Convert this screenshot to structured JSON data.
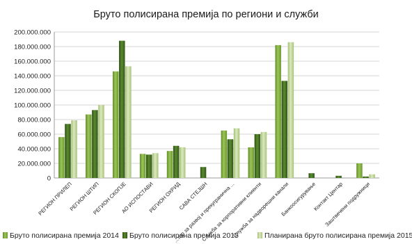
{
  "chart_data": {
    "type": "bar",
    "title": "Бруто полисирана премија по региони и служби",
    "xlabel": "",
    "ylabel": "",
    "ylim": [
      0,
      200000000
    ],
    "yticks": [
      0,
      20000000,
      40000000,
      60000000,
      80000000,
      100000000,
      120000000,
      140000000,
      160000000,
      180000000,
      200000000
    ],
    "ytick_labels": [
      "0",
      "20.000.000",
      "40.000.000",
      "60.000.000",
      "80.000.000",
      "100.000.000",
      "120.000.000",
      "140.000.000",
      "160.000.000",
      "180.000.000",
      "200.000.000"
    ],
    "categories": [
      "РЕГИОН ПРИЛЕП",
      "РЕГИОН ШТИП",
      "РЕГИОН СКОПЈЕ",
      "АО ИСПОСТАВИ",
      "РЕГИОН ОХРИД",
      "САВА СТЕЈШН",
      "...тор за развој и прекугранична ...",
      "Служба за корпоративни клиенти",
      "Служба за надворешни канали",
      "Банкоосигурување",
      "Контакт Центар",
      "Заштвечени подружници"
    ],
    "series": [
      {
        "name": "Бруто полисирана премија 2014",
        "color": "#7fae3c",
        "values": [
          56000000,
          87000000,
          146000000,
          33000000,
          37000000,
          0,
          65000000,
          42000000,
          182000000,
          0,
          0,
          20000000
        ]
      },
      {
        "name": "Бруто полисирана премија 2015",
        "color": "#3f6a1e",
        "values": [
          74000000,
          93000000,
          188000000,
          32000000,
          44000000,
          15000000,
          53000000,
          60000000,
          133000000,
          6500000,
          3000000,
          2000000
        ]
      },
      {
        "name": "Планирана бруто полисирана премија 2015",
        "color": "#b7d089",
        "values": [
          79000000,
          100000000,
          153000000,
          34000000,
          42000000,
          0,
          68000000,
          63000000,
          186000000,
          0,
          0,
          5000000
        ]
      }
    ],
    "grid": true,
    "legend_position": "bottom"
  }
}
